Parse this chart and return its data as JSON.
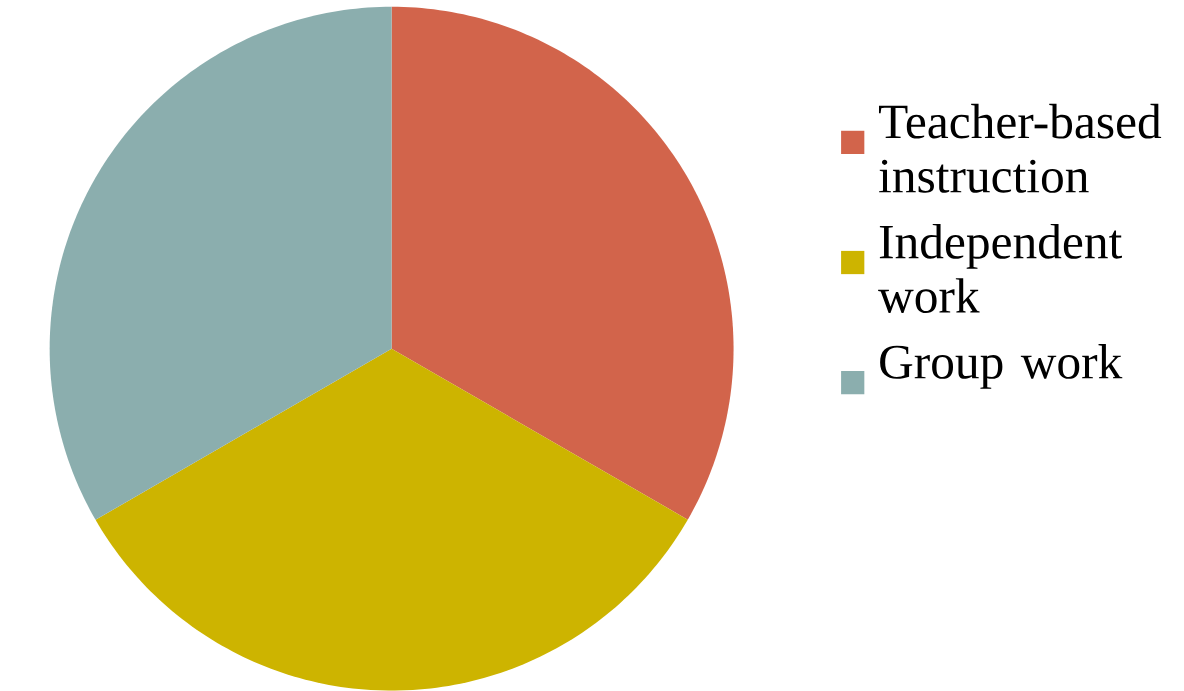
{
  "chart_data": {
    "type": "pie",
    "categories": [
      "Teacher-based instruction",
      "Independent work",
      "Group work"
    ],
    "values": [
      33.33,
      33.33,
      33.34
    ],
    "colors": [
      "#d2644b",
      "#cdb400",
      "#8baeae"
    ],
    "legend": "right"
  }
}
